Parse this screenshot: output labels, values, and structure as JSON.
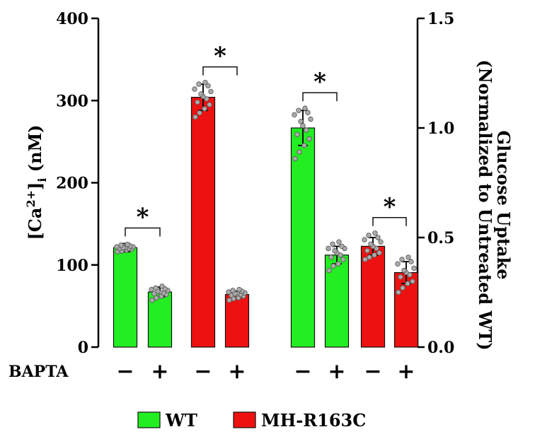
{
  "chart_data": {
    "type": "bar",
    "left_axis": {
      "title_base": "[Ca",
      "title_sup": "2+",
      "title_close": "]",
      "title_sub": "i",
      "title_unit": " (nM)",
      "ylim": [
        0,
        400
      ],
      "ticks": [
        "0",
        "100",
        "200",
        "300",
        "400"
      ]
    },
    "right_axis": {
      "title_line1": "Glucose Uptake",
      "title_line2": "(Normalized to Untreated WT)",
      "ylim": [
        0,
        1.5
      ],
      "ticks": [
        "0.0",
        "0.5",
        "1.0",
        "1.5"
      ]
    },
    "row_label": "BAPTA",
    "legend": [
      {
        "name": "WT",
        "color": "#22ee22"
      },
      {
        "name": "MH-R163C",
        "color": "#ee1111"
      }
    ],
    "colors": {
      "WT": "#22ee22",
      "MH-R163C": "#ee1111",
      "points": "#aaaaaa"
    },
    "significance_marker": "*",
    "bars": [
      {
        "panel": "calcium",
        "axis": "left",
        "genotype": "WT",
        "bapta": "−",
        "mean": 121,
        "sd": 5,
        "points": [
          116,
          117,
          118,
          119,
          120,
          120,
          121,
          121,
          122,
          122,
          123,
          124,
          125
        ]
      },
      {
        "panel": "calcium",
        "axis": "left",
        "genotype": "WT",
        "bapta": "+",
        "mean": 67,
        "sd": 6,
        "points": [
          57,
          60,
          62,
          64,
          65,
          66,
          67,
          68,
          69,
          70,
          71,
          72,
          74
        ]
      },
      {
        "panel": "calcium",
        "axis": "left",
        "genotype": "MH-R163C",
        "bapta": "−",
        "mean": 304,
        "sd": 16,
        "points": [
          280,
          285,
          290,
          295,
          298,
          302,
          305,
          308,
          311,
          314,
          318,
          320,
          322
        ]
      },
      {
        "panel": "calcium",
        "axis": "left",
        "genotype": "MH-R163C",
        "bapta": "+",
        "mean": 64,
        "sd": 4,
        "points": [
          57,
          59,
          60,
          62,
          63,
          64,
          65,
          65,
          66,
          67,
          68,
          69,
          70
        ]
      },
      {
        "panel": "glucose",
        "axis": "right",
        "genotype": "WT",
        "bapta": "−",
        "mean": 1.0,
        "sd": 0.08,
        "points": [
          0.86,
          0.89,
          0.92,
          0.95,
          0.97,
          0.99,
          1.01,
          1.03,
          1.04,
          1.06,
          1.07,
          1.08,
          1.09
        ]
      },
      {
        "panel": "glucose",
        "axis": "right",
        "genotype": "WT",
        "bapta": "+",
        "mean": 0.42,
        "sd": 0.04,
        "points": [
          0.35,
          0.37,
          0.38,
          0.4,
          0.41,
          0.42,
          0.43,
          0.44,
          0.45,
          0.45,
          0.46,
          0.47,
          0.48
        ]
      },
      {
        "panel": "glucose",
        "axis": "right",
        "genotype": "MH-R163C",
        "bapta": "−",
        "mean": 0.46,
        "sd": 0.04,
        "points": [
          0.4,
          0.41,
          0.42,
          0.43,
          0.44,
          0.45,
          0.46,
          0.47,
          0.48,
          0.49,
          0.5,
          0.51,
          0.52
        ]
      },
      {
        "panel": "glucose",
        "axis": "right",
        "genotype": "MH-R163C",
        "bapta": "+",
        "mean": 0.34,
        "sd": 0.05,
        "points": [
          0.25,
          0.27,
          0.29,
          0.3,
          0.32,
          0.33,
          0.34,
          0.35,
          0.36,
          0.38,
          0.39,
          0.4,
          0.41
        ]
      }
    ],
    "significance": [
      {
        "bars": [
          0,
          1
        ]
      },
      {
        "bars": [
          2,
          3
        ]
      },
      {
        "bars": [
          4,
          5
        ]
      },
      {
        "bars": [
          6,
          7
        ]
      }
    ]
  }
}
